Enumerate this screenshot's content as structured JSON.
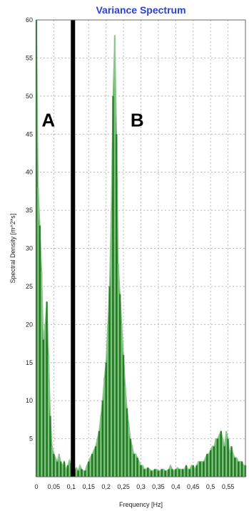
{
  "colors": {
    "title": "#2b3fd6",
    "series": "#1f7a1f",
    "series_light": "#8bc88b",
    "grid": "#b8b8b8",
    "axis": "#666666",
    "marker": "#000000"
  },
  "chart_data": {
    "type": "area",
    "title": "Variance Spectrum",
    "xlabel": "Frequency [Hz]",
    "ylabel": "Spectral Density [m^2*s]",
    "xlim": [
      0,
      0.6
    ],
    "ylim": [
      0,
      60
    ],
    "xticks": [
      0,
      0.05,
      0.1,
      0.15,
      0.2,
      0.25,
      0.3,
      0.35,
      0.4,
      0.45,
      0.5,
      0.55
    ],
    "xtick_labels": [
      "0",
      "0,05",
      "0,1",
      "0,15",
      "0,2",
      "0,25",
      "0,3",
      "0,35",
      "0,4",
      "0,45",
      "0,5",
      "0,55"
    ],
    "yticks": [
      5,
      10,
      15,
      20,
      25,
      30,
      35,
      40,
      45,
      50,
      55,
      60
    ],
    "ytick_labels": [
      "5",
      "10",
      "15",
      "20",
      "25",
      "30",
      "35",
      "40",
      "45",
      "50",
      "55",
      "60"
    ],
    "grid": true,
    "series": [
      {
        "x": [
          0.0,
          0.005,
          0.01,
          0.015,
          0.02,
          0.025,
          0.03,
          0.035,
          0.04,
          0.045,
          0.05,
          0.055,
          0.06,
          0.065,
          0.07,
          0.075,
          0.08,
          0.085,
          0.09,
          0.095,
          0.1,
          0.105,
          0.11,
          0.115,
          0.12,
          0.125,
          0.13,
          0.135,
          0.14,
          0.145,
          0.15,
          0.155,
          0.16,
          0.165,
          0.17,
          0.175,
          0.18,
          0.185,
          0.19,
          0.195,
          0.2,
          0.205,
          0.21,
          0.215,
          0.22,
          0.225,
          0.23,
          0.235,
          0.24,
          0.245,
          0.25,
          0.255,
          0.26,
          0.265,
          0.27,
          0.275,
          0.28,
          0.285,
          0.29,
          0.295,
          0.3,
          0.305,
          0.31,
          0.315,
          0.32,
          0.325,
          0.33,
          0.335,
          0.34,
          0.345,
          0.35,
          0.355,
          0.36,
          0.365,
          0.37,
          0.375,
          0.38,
          0.385,
          0.39,
          0.395,
          0.4,
          0.405,
          0.41,
          0.415,
          0.42,
          0.425,
          0.43,
          0.435,
          0.44,
          0.445,
          0.45,
          0.455,
          0.46,
          0.465,
          0.47,
          0.475,
          0.48,
          0.485,
          0.49,
          0.495,
          0.5,
          0.505,
          0.51,
          0.515,
          0.52,
          0.525,
          0.53,
          0.535,
          0.54,
          0.545,
          0.55,
          0.555,
          0.56,
          0.565,
          0.57,
          0.575,
          0.58,
          0.585,
          0.59,
          0.595,
          0.6
        ],
        "values": [
          60,
          38,
          33,
          27,
          18,
          20,
          23,
          16,
          8,
          4,
          3,
          2.5,
          2,
          3,
          2,
          1.5,
          2,
          1,
          1.5,
          2.2,
          1.8,
          2.5,
          1,
          1.2,
          0.8,
          1.5,
          1,
          0.8,
          0.8,
          1.5,
          2,
          2.5,
          3,
          3.5,
          4,
          5,
          6,
          8,
          10,
          13,
          15,
          20,
          25,
          35,
          50,
          58,
          45,
          28,
          24,
          20,
          16,
          12,
          9,
          7,
          5,
          4,
          3,
          3,
          2.5,
          2,
          1.5,
          1.5,
          1,
          1,
          1.2,
          1,
          0.8,
          0.8,
          1,
          1,
          0.8,
          0.8,
          1,
          1,
          0.8,
          0.8,
          1,
          1.5,
          1,
          0.8,
          1,
          1.2,
          1,
          1,
          1,
          1,
          1.5,
          1,
          1,
          1.5,
          1.5,
          1,
          1.5,
          2,
          2,
          2,
          2,
          2.5,
          3,
          3,
          3.5,
          4,
          4,
          5,
          5,
          5.5,
          6,
          5,
          4,
          6,
          5,
          3,
          4,
          3,
          2.5,
          2.5,
          2,
          2,
          2,
          1.5,
          1.5
        ]
      }
    ],
    "annotations": [
      {
        "text": "A",
        "x": 0.015,
        "y": 46
      },
      {
        "text": "B",
        "x": 0.27,
        "y": 46
      }
    ],
    "vertical_markers": [
      {
        "x": 0.105
      }
    ]
  }
}
